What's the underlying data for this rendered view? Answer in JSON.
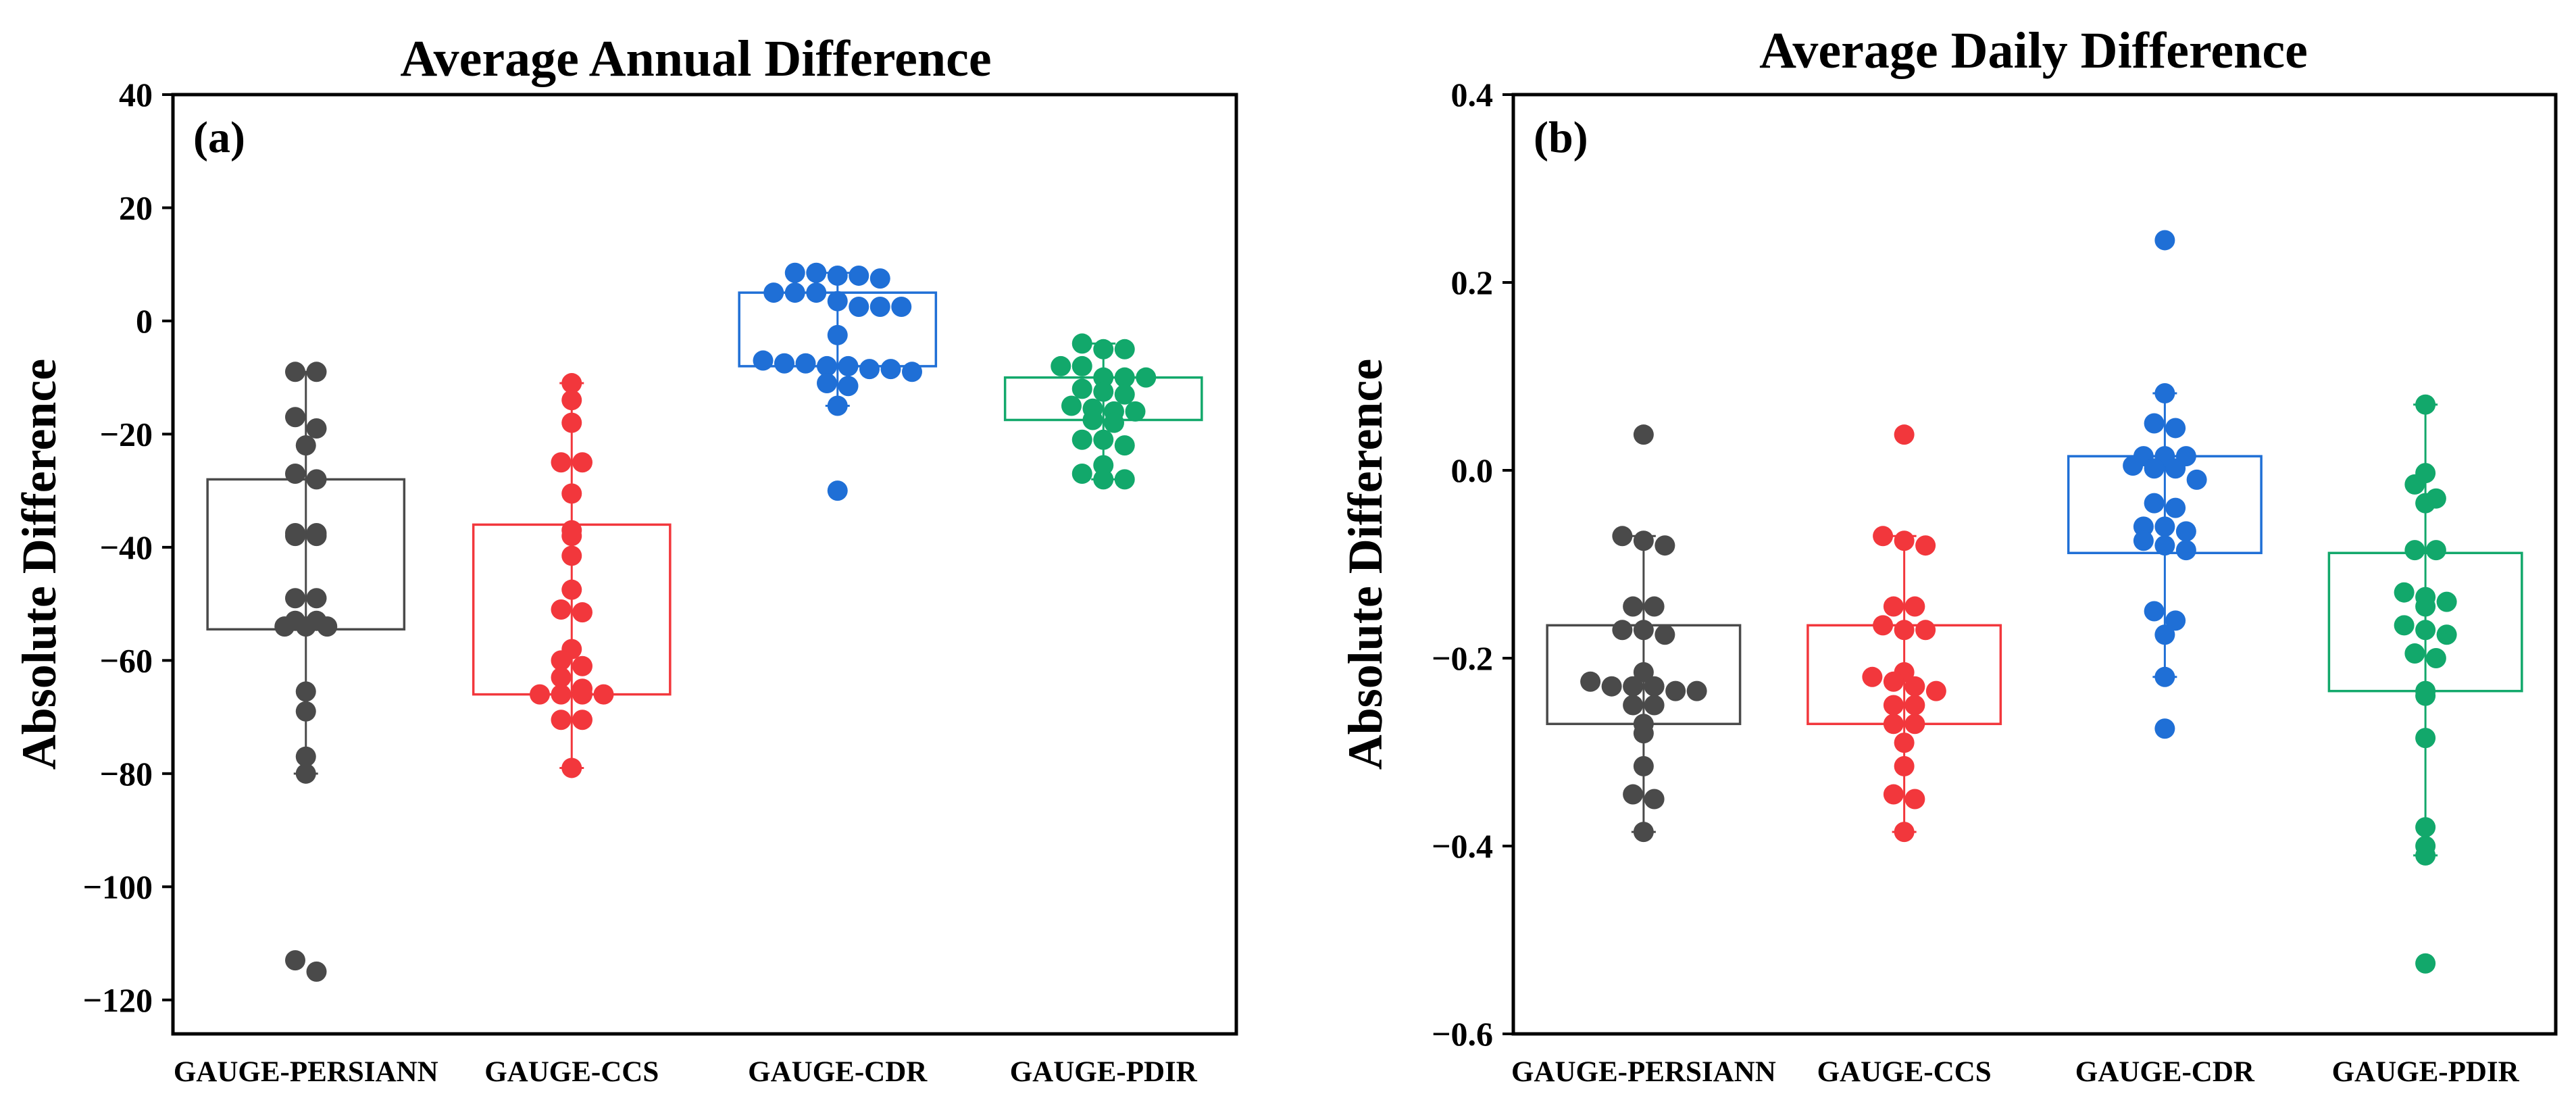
{
  "chart_data": [
    {
      "type": "box",
      "panel_label": "(a)",
      "title": "Average Annual Difference",
      "xlabel": "",
      "ylabel": "Absolute Difference",
      "ylim": [
        -126,
        40
      ],
      "yticks": [
        40,
        20,
        0,
        -20,
        -40,
        -60,
        -80,
        -100,
        -120
      ],
      "ytick_labels": [
        "40",
        "20",
        "0",
        "−20",
        "−40",
        "−60",
        "−80",
        "−100",
        "−120"
      ],
      "grid": false,
      "categories": [
        "GAUGE-PERSIANN",
        "GAUGE-CCS",
        "GAUGE-CDR",
        "GAUGE-PDIR"
      ],
      "series": [
        {
          "category": "GAUGE-PERSIANN",
          "color": "#4a4a4a",
          "box": {
            "q1": -54.5,
            "q3": -28,
            "whisker_low": -80,
            "whisker_high": -9
          },
          "points": [
            -9,
            -9,
            -17,
            -19,
            -22,
            -27,
            -28,
            -37.5,
            -37.5,
            -38,
            -38,
            -49,
            -49,
            -53,
            -53,
            -54,
            -54,
            -54,
            -65.5,
            -69,
            -77,
            -80,
            -113,
            -115
          ]
        },
        {
          "category": "GAUGE-CCS",
          "color": "#f2373c",
          "box": {
            "q1": -66,
            "q3": -36,
            "whisker_low": -79,
            "whisker_high": -11
          },
          "points": [
            -11,
            -14,
            -18,
            -25,
            -25,
            -30.5,
            -37,
            -38,
            -41.5,
            -47.5,
            -51,
            -51.5,
            -58,
            -60,
            -61,
            -63,
            -65,
            -66,
            -66,
            -66,
            -66,
            -70.5,
            -70.5,
            -79
          ]
        },
        {
          "category": "GAUGE-CDR",
          "color": "#1f6fd6",
          "box": {
            "q1": -8,
            "q3": 5,
            "whisker_low": -15,
            "whisker_high": 8.5
          },
          "points": [
            8.5,
            8.5,
            8,
            8,
            7.5,
            5,
            5,
            5,
            3.5,
            2.5,
            2.5,
            2.5,
            -2.5,
            -7,
            -7.5,
            -7.5,
            -8,
            -8,
            -8.5,
            -8.5,
            -9,
            -11,
            -11.5,
            -15,
            -30
          ]
        },
        {
          "category": "GAUGE-PDIR",
          "color": "#12a86b",
          "box": {
            "q1": -17.5,
            "q3": -10,
            "whisker_low": -28,
            "whisker_high": -4
          },
          "points": [
            -4,
            -5,
            -5,
            -8,
            -8,
            -10,
            -10,
            -10,
            -12,
            -12.5,
            -13,
            -15,
            -15.5,
            -16,
            -16,
            -17.5,
            -18,
            -21,
            -21,
            -22,
            -25.5,
            -27,
            -28,
            -28
          ]
        }
      ]
    },
    {
      "type": "box",
      "panel_label": "(b)",
      "title": "Average Daily Difference",
      "xlabel": "",
      "ylabel": "Absolute Difference",
      "ylim": [
        -0.6,
        0.4
      ],
      "yticks": [
        0.4,
        0.2,
        0.0,
        -0.2,
        -0.4,
        -0.6
      ],
      "ytick_labels": [
        "0.4",
        "0.2",
        "0.0",
        "−0.2",
        "−0.4",
        "−0.6"
      ],
      "grid": false,
      "categories": [
        "GAUGE-PERSIANN",
        "GAUGE-CCS",
        "GAUGE-CDR",
        "GAUGE-PDIR"
      ],
      "series": [
        {
          "category": "GAUGE-PERSIANN",
          "color": "#4a4a4a",
          "box": {
            "q1": -0.27,
            "q3": -0.165,
            "whisker_low": -0.385,
            "whisker_high": -0.07
          },
          "points": [
            0.038,
            -0.07,
            -0.075,
            -0.08,
            -0.145,
            -0.145,
            -0.17,
            -0.17,
            -0.175,
            -0.215,
            -0.225,
            -0.23,
            -0.23,
            -0.23,
            -0.235,
            -0.235,
            -0.25,
            -0.25,
            -0.27,
            -0.28,
            -0.315,
            -0.345,
            -0.35,
            -0.385
          ]
        },
        {
          "category": "GAUGE-CCS",
          "color": "#f2373c",
          "box": {
            "q1": -0.27,
            "q3": -0.165,
            "whisker_low": -0.385,
            "whisker_high": -0.07
          },
          "points": [
            0.038,
            -0.07,
            -0.075,
            -0.08,
            -0.145,
            -0.145,
            -0.165,
            -0.17,
            -0.17,
            -0.215,
            -0.22,
            -0.225,
            -0.23,
            -0.235,
            -0.25,
            -0.25,
            -0.27,
            -0.27,
            -0.29,
            -0.315,
            -0.345,
            -0.35,
            -0.385
          ]
        },
        {
          "category": "GAUGE-CDR",
          "color": "#1f6fd6",
          "box": {
            "q1": -0.088,
            "q3": 0.015,
            "whisker_low": -0.22,
            "whisker_high": 0.082
          },
          "points": [
            0.245,
            0.082,
            0.05,
            0.045,
            0.015,
            0.015,
            0.015,
            0.005,
            0.002,
            0.002,
            -0.01,
            -0.035,
            -0.04,
            -0.06,
            -0.06,
            -0.065,
            -0.075,
            -0.08,
            -0.085,
            -0.15,
            -0.16,
            -0.175,
            -0.22,
            -0.275
          ]
        },
        {
          "category": "GAUGE-PDIR",
          "color": "#12a86b",
          "box": {
            "q1": -0.235,
            "q3": -0.088,
            "whisker_low": -0.41,
            "whisker_high": 0.07
          },
          "points": [
            0.07,
            -0.003,
            -0.015,
            -0.03,
            -0.035,
            -0.085,
            -0.085,
            -0.13,
            -0.135,
            -0.14,
            -0.145,
            -0.165,
            -0.17,
            -0.175,
            -0.195,
            -0.2,
            -0.235,
            -0.24,
            -0.285,
            -0.38,
            -0.4,
            -0.41,
            -0.525
          ]
        }
      ]
    }
  ]
}
